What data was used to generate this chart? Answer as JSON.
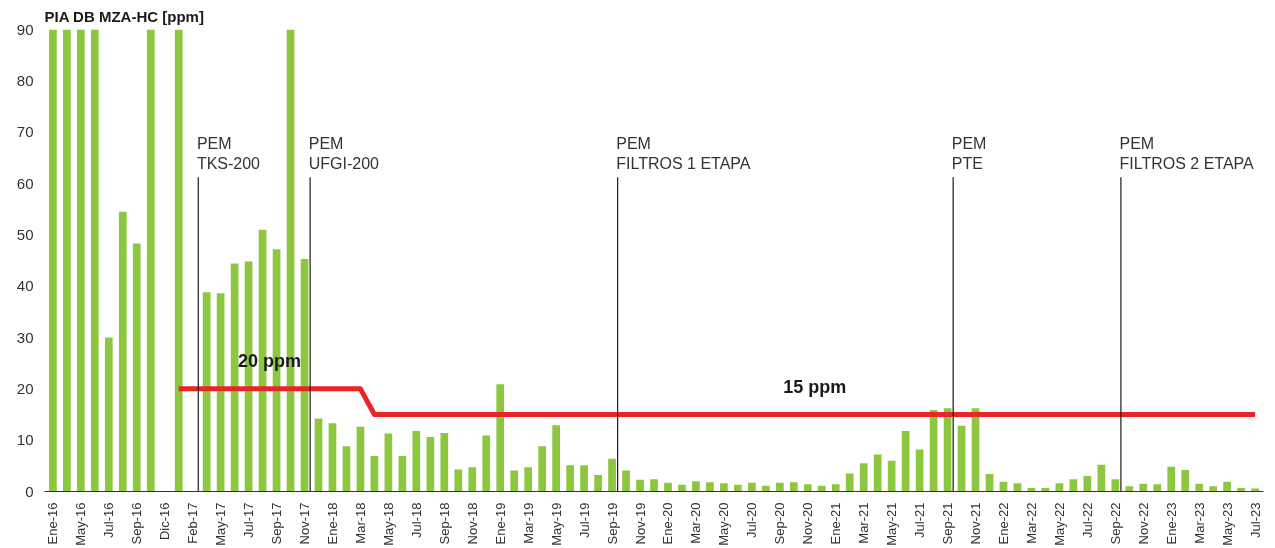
{
  "chart_data": {
    "type": "bar",
    "title": "PIA DB MZA-HC [ppm]",
    "categories": [
      "Ene-16",
      null,
      "May-16",
      null,
      "Jul-16",
      null,
      "Sep-16",
      null,
      "Dic-16",
      null,
      "Feb-17",
      null,
      "May-17",
      null,
      "Jul-17",
      null,
      "Sep-17",
      null,
      "Nov-17",
      null,
      "Ene-18",
      null,
      "Mar-18",
      null,
      "May-18",
      null,
      "Jul-18",
      null,
      "Sep-18",
      null,
      "Nov-18",
      null,
      "Ene-19",
      null,
      "Mar-19",
      null,
      "May-19",
      null,
      "Jul-19",
      null,
      "Sep-19",
      null,
      "Nov-19",
      null,
      "Ene-20",
      null,
      "Mar-20",
      null,
      "May-20",
      null,
      "Jul-20",
      null,
      "Sep-20",
      null,
      "Nov-20",
      null,
      "Ene-21",
      null,
      "Mar-21",
      null,
      "May-21",
      null,
      "Jul-21",
      null,
      "Sep-21",
      null,
      "Nov-21",
      null,
      "Ene-22",
      null,
      "Mar-22",
      null,
      "May-22",
      null,
      "Jul-22",
      null,
      "Sep-22",
      null,
      "Nov-22",
      null,
      "Ene-23",
      null,
      "Mar-23",
      null,
      "May-23",
      null,
      "Jul-23"
    ],
    "series": [
      {
        "color": "#8dc63f",
        "values": [
          90,
          90,
          90,
          90,
          30,
          54.5,
          48.3,
          90,
          null,
          90,
          null,
          38.8,
          38.6,
          44.4,
          44.8,
          51,
          47.2,
          90,
          45.3,
          14.2,
          13.3,
          8.8,
          12.6,
          6.9,
          11.3,
          6.9,
          11.8,
          10.6,
          11.4,
          4.3,
          4.7,
          10.9,
          20.9,
          4.1,
          4.7,
          8.8,
          12.9,
          5.1,
          5.1,
          3.2,
          6.4,
          4.1,
          2.3,
          2.4,
          1.7,
          1.3,
          2.0,
          1.8,
          1.6,
          1.3,
          1.7,
          1.1,
          1.7,
          1.8,
          1.4,
          1.1,
          1.4,
          3.5,
          5.5,
          7.2,
          6.0,
          11.8,
          8.2,
          15.9,
          16.2,
          12.8,
          16.2,
          3.4,
          1.9,
          1.6,
          0.7,
          0.7,
          1.6,
          2.4,
          3.0,
          5.2,
          2.4,
          1.0,
          1.5,
          1.4,
          4.8,
          4.2,
          1.5,
          1.0,
          1.9,
          0.7,
          0.6
        ]
      },
      {
        "type": "line",
        "color": "#e8262a",
        "values": [
          null,
          null,
          null,
          null,
          null,
          null,
          null,
          null,
          null,
          20,
          20,
          20,
          20,
          20,
          20,
          20,
          20,
          20,
          20,
          20,
          20,
          20,
          20,
          15,
          15,
          15,
          15,
          15,
          15,
          15,
          15,
          15,
          15,
          15,
          15,
          15,
          15,
          15,
          15,
          15,
          15,
          15,
          15,
          15,
          15,
          15,
          15,
          15,
          15,
          15,
          15,
          15,
          15,
          15,
          15,
          15,
          15,
          15,
          15,
          15,
          15,
          15,
          15,
          15,
          15,
          15,
          15,
          15,
          15,
          15,
          15,
          15,
          15,
          15,
          15,
          15,
          15,
          15,
          15,
          15,
          15,
          15,
          15,
          15,
          15,
          15,
          15
        ]
      }
    ],
    "ylim": [
      0,
      90
    ],
    "yticks": [
      0,
      10,
      20,
      30,
      40,
      50,
      60,
      70,
      80,
      90
    ],
    "grid": false,
    "ref_lines": [
      {
        "axis": "x",
        "value": "Feb-17",
        "label": "PEM\nTKS-200",
        "color": "#1a1a1a"
      },
      {
        "axis": "x",
        "value": "Nov-17",
        "label": "PEM\nUFGI-200",
        "color": "#1a1a1a"
      },
      {
        "axis": "x",
        "value": "Sep-19",
        "label": "PEM\nFILTROS 1 ETAPA",
        "color": "#1a1a1a"
      },
      {
        "axis": "x",
        "value": "Sep-21",
        "label": "PEM\nPTE",
        "color": "#1a1a1a"
      },
      {
        "axis": "x",
        "value": "Sep-22",
        "label": "PEM\nFILTROS 2 ETAPA",
        "color": "#1a1a1a"
      }
    ],
    "annotations": [
      "20 ppm",
      "15 ppm"
    ]
  }
}
